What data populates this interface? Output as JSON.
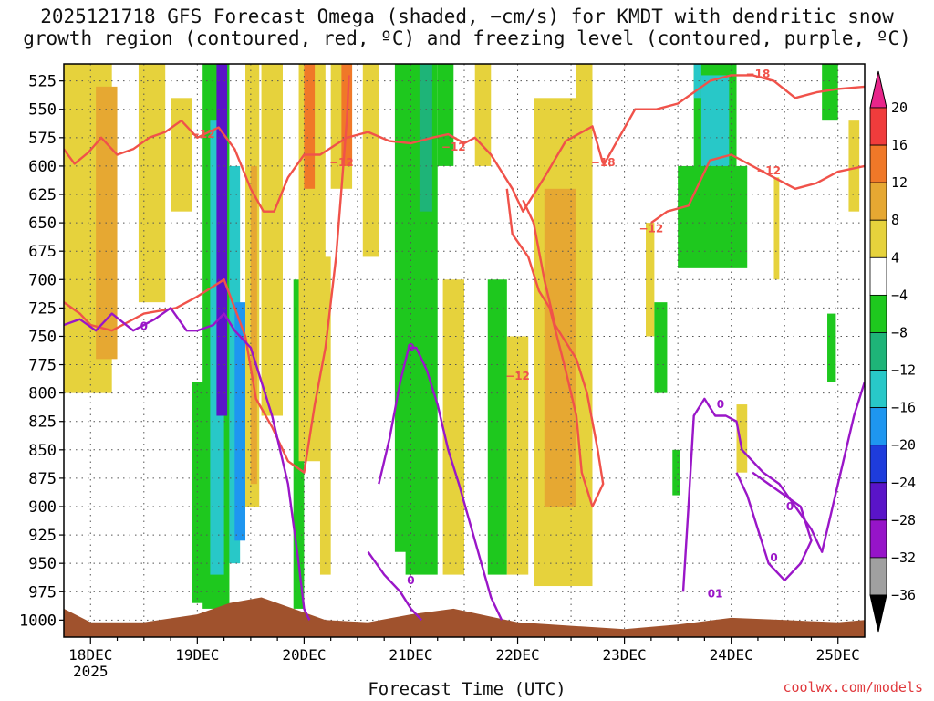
{
  "title_line1": "2025121718 GFS Forecast Omega (shaded, −cm/s) for KMDT with dendritic snow",
  "title_line2": "growth region (contoured, red, ºC) and freezing level (contoured, purple, ºC)",
  "x_title": "Forecast Time (UTC)",
  "credit": "coolwx.com/models",
  "colors": {
    "dgz_contour": "#f0524a",
    "freezing_contour": "#9a16c8",
    "terrain": "#a0522d",
    "grid": "#555555"
  },
  "chart_data": {
    "type": "heatmap",
    "y_axis": {
      "unit": "hPa",
      "ticks": [
        525,
        550,
        575,
        600,
        625,
        650,
        675,
        700,
        725,
        750,
        775,
        800,
        825,
        850,
        875,
        900,
        925,
        950,
        975,
        1000
      ],
      "range": [
        1015,
        510
      ]
    },
    "x_axis": {
      "unit": "day",
      "range": [
        17.75,
        25.25
      ],
      "tick_labels": [
        "18DEC",
        "19DEC",
        "20DEC",
        "21DEC",
        "22DEC",
        "23DEC",
        "24DEC",
        "25DEC"
      ],
      "tick_values": [
        18,
        19,
        20,
        21,
        22,
        23,
        24,
        25
      ],
      "year_label": "2025"
    },
    "colorbar": {
      "tick_labels": [
        "20",
        "16",
        "12",
        "8",
        "4",
        "−4",
        "−8",
        "−12",
        "−16",
        "−20",
        "−24",
        "−28",
        "−32",
        "−36"
      ],
      "bins": [
        {
          "min": 20,
          "max": 24,
          "color": "#e8258a"
        },
        {
          "min": 16,
          "max": 20,
          "color": "#f03c3c"
        },
        {
          "min": 12,
          "max": 16,
          "color": "#f07828"
        },
        {
          "min": 8,
          "max": 12,
          "color": "#e6a832"
        },
        {
          "min": 4,
          "max": 8,
          "color": "#e6d23c"
        },
        {
          "min": -4,
          "max": 4,
          "color": "#ffffff"
        },
        {
          "min": -8,
          "max": -4,
          "color": "#1ec81e"
        },
        {
          "min": -12,
          "max": -8,
          "color": "#1eb478"
        },
        {
          "min": -16,
          "max": -12,
          "color": "#28c8c8"
        },
        {
          "min": -20,
          "max": -16,
          "color": "#1e96f0"
        },
        {
          "min": -24,
          "max": -20,
          "color": "#1e3cdc"
        },
        {
          "min": -28,
          "max": -24,
          "color": "#5a14c8"
        },
        {
          "min": -32,
          "max": -28,
          "color": "#9614c8"
        },
        {
          "min": -36,
          "max": -32,
          "color": "#a0a0a0"
        },
        {
          "min": -40,
          "max": -36,
          "color": "#000000"
        }
      ]
    },
    "omega_regions": [
      {
        "t0": 17.75,
        "t1": 18.2,
        "p_top": 510,
        "p_bot": 800,
        "value": 6
      },
      {
        "t0": 18.05,
        "t1": 18.25,
        "p_top": 530,
        "p_bot": 770,
        "value": 10
      },
      {
        "t0": 18.45,
        "t1": 18.7,
        "p_top": 510,
        "p_bot": 720,
        "value": 6
      },
      {
        "t0": 18.75,
        "t1": 18.95,
        "p_top": 540,
        "p_bot": 640,
        "value": 6
      },
      {
        "t0": 18.95,
        "t1": 19.15,
        "p_top": 790,
        "p_bot": 985,
        "value": -6
      },
      {
        "t0": 19.05,
        "t1": 19.3,
        "p_top": 510,
        "p_bot": 990,
        "value": -6
      },
      {
        "t0": 19.12,
        "t1": 19.25,
        "p_top": 560,
        "p_bot": 960,
        "value": -14
      },
      {
        "t0": 19.18,
        "t1": 19.28,
        "p_top": 510,
        "p_bot": 820,
        "value": -26
      },
      {
        "t0": 19.3,
        "t1": 19.4,
        "p_top": 600,
        "p_bot": 950,
        "value": -14
      },
      {
        "t0": 19.35,
        "t1": 19.45,
        "p_top": 720,
        "p_bot": 930,
        "value": -18
      },
      {
        "t0": 19.45,
        "t1": 19.58,
        "p_top": 510,
        "p_bot": 900,
        "value": 6
      },
      {
        "t0": 19.5,
        "t1": 19.56,
        "p_top": 600,
        "p_bot": 880,
        "value": 10
      },
      {
        "t0": 19.6,
        "t1": 19.8,
        "p_top": 510,
        "p_bot": 820,
        "value": 6
      },
      {
        "t0": 19.9,
        "t1": 20.0,
        "p_top": 700,
        "p_bot": 990,
        "value": -6
      },
      {
        "t0": 19.95,
        "t1": 20.2,
        "p_top": 510,
        "p_bot": 860,
        "value": 6
      },
      {
        "t0": 20.0,
        "t1": 20.1,
        "p_top": 510,
        "p_bot": 620,
        "value": 14
      },
      {
        "t0": 20.15,
        "t1": 20.25,
        "p_top": 680,
        "p_bot": 960,
        "value": 6
      },
      {
        "t0": 20.25,
        "t1": 20.45,
        "p_top": 510,
        "p_bot": 620,
        "value": 6
      },
      {
        "t0": 20.35,
        "t1": 20.45,
        "p_top": 510,
        "p_bot": 600,
        "value": 14
      },
      {
        "t0": 20.55,
        "t1": 20.7,
        "p_top": 510,
        "p_bot": 680,
        "value": 6
      },
      {
        "t0": 20.85,
        "t1": 20.98,
        "p_top": 510,
        "p_bot": 940,
        "value": -6
      },
      {
        "t0": 20.95,
        "t1": 21.25,
        "p_top": 510,
        "p_bot": 960,
        "value": -6
      },
      {
        "t0": 21.08,
        "t1": 21.2,
        "p_top": 510,
        "p_bot": 640,
        "value": -10
      },
      {
        "t0": 21.25,
        "t1": 21.4,
        "p_top": 510,
        "p_bot": 600,
        "value": -6
      },
      {
        "t0": 21.3,
        "t1": 21.5,
        "p_top": 700,
        "p_bot": 960,
        "value": 6
      },
      {
        "t0": 21.6,
        "t1": 21.75,
        "p_top": 510,
        "p_bot": 600,
        "value": 6
      },
      {
        "t0": 21.72,
        "t1": 21.9,
        "p_top": 700,
        "p_bot": 960,
        "value": -6
      },
      {
        "t0": 21.9,
        "t1": 22.1,
        "p_top": 750,
        "p_bot": 960,
        "value": 6
      },
      {
        "t0": 22.15,
        "t1": 22.7,
        "p_top": 540,
        "p_bot": 970,
        "value": 6
      },
      {
        "t0": 22.25,
        "t1": 22.55,
        "p_top": 620,
        "p_bot": 900,
        "value": 10
      },
      {
        "t0": 22.55,
        "t1": 22.7,
        "p_top": 510,
        "p_bot": 620,
        "value": 6
      },
      {
        "t0": 23.2,
        "t1": 23.28,
        "p_top": 650,
        "p_bot": 750,
        "value": 6
      },
      {
        "t0": 23.28,
        "t1": 23.4,
        "p_top": 720,
        "p_bot": 800,
        "value": -6
      },
      {
        "t0": 23.5,
        "t1": 24.15,
        "p_top": 600,
        "p_bot": 690,
        "value": -6
      },
      {
        "t0": 23.65,
        "t1": 24.05,
        "p_top": 510,
        "p_bot": 640,
        "value": -6
      },
      {
        "t0": 23.72,
        "t1": 23.98,
        "p_top": 520,
        "p_bot": 600,
        "value": -14
      },
      {
        "t0": 23.65,
        "t1": 23.72,
        "p_top": 510,
        "p_bot": 540,
        "value": -14
      },
      {
        "t0": 24.05,
        "t1": 24.15,
        "p_top": 810,
        "p_bot": 870,
        "value": 6
      },
      {
        "t0": 23.45,
        "t1": 23.52,
        "p_top": 850,
        "p_bot": 890,
        "value": -6
      },
      {
        "t0": 24.4,
        "t1": 24.45,
        "p_top": 610,
        "p_bot": 700,
        "value": 6
      },
      {
        "t0": 24.85,
        "t1": 25.0,
        "p_top": 510,
        "p_bot": 560,
        "value": -6
      },
      {
        "t0": 24.9,
        "t1": 24.98,
        "p_top": 730,
        "p_bot": 790,
        "value": -6
      },
      {
        "t0": 25.1,
        "t1": 25.2,
        "p_top": 560,
        "p_bot": 640,
        "value": 6
      }
    ],
    "contours": {
      "dgz_minus12_upper": [
        [
          17.75,
          585
        ],
        [
          17.85,
          598
        ],
        [
          17.98,
          588
        ],
        [
          18.1,
          575
        ],
        [
          18.25,
          590
        ],
        [
          18.4,
          585
        ],
        [
          18.55,
          575
        ],
        [
          18.7,
          570
        ],
        [
          18.85,
          560
        ],
        [
          19.0,
          575
        ],
        [
          19.2,
          566
        ],
        [
          19.35,
          585
        ],
        [
          19.5,
          620
        ],
        [
          19.62,
          640
        ],
        [
          19.72,
          640
        ],
        [
          19.85,
          610
        ],
        [
          20.0,
          590
        ],
        [
          20.15,
          590
        ],
        [
          20.4,
          575
        ],
        [
          20.6,
          570
        ],
        [
          20.8,
          578
        ],
        [
          21.0,
          580
        ],
        [
          21.2,
          575
        ],
        [
          21.35,
          572
        ],
        [
          21.5,
          580
        ],
        [
          21.6,
          575
        ],
        [
          21.75,
          590
        ],
        [
          21.95,
          620
        ],
        [
          22.05,
          640
        ],
        [
          22.25,
          610
        ],
        [
          22.45,
          578
        ],
        [
          22.7,
          565
        ],
        [
          22.8,
          598
        ]
      ],
      "dgz_minus12_lower": [
        [
          17.75,
          720
        ],
        [
          17.9,
          730
        ],
        [
          18.0,
          740
        ],
        [
          18.2,
          745
        ],
        [
          18.5,
          730
        ],
        [
          18.8,
          725
        ],
        [
          19.0,
          715
        ],
        [
          19.25,
          700
        ],
        [
          19.45,
          750
        ],
        [
          19.55,
          805
        ],
        [
          19.7,
          830
        ],
        [
          19.85,
          860
        ],
        [
          20.0,
          870
        ],
        [
          20.1,
          810
        ],
        [
          20.2,
          760
        ],
        [
          20.25,
          720
        ],
        [
          20.3,
          680
        ],
        [
          20.35,
          620
        ],
        [
          20.4,
          560
        ],
        [
          20.42,
          520
        ]
      ],
      "dgz_minus12_east": [
        [
          21.9,
          620
        ],
        [
          21.95,
          660
        ],
        [
          22.1,
          680
        ],
        [
          22.2,
          710
        ],
        [
          22.3,
          725
        ],
        [
          22.45,
          780
        ],
        [
          22.55,
          820
        ],
        [
          22.6,
          870
        ],
        [
          22.7,
          900
        ],
        [
          22.8,
          880
        ],
        [
          22.75,
          850
        ],
        [
          22.65,
          800
        ],
        [
          22.55,
          770
        ],
        [
          22.35,
          740
        ],
        [
          22.25,
          700
        ],
        [
          22.15,
          650
        ],
        [
          22.05,
          630
        ]
      ],
      "dgz_minus18_upper": [
        [
          22.8,
          600
        ],
        [
          22.95,
          575
        ],
        [
          23.1,
          550
        ],
        [
          23.3,
          550
        ],
        [
          23.5,
          545
        ],
        [
          23.65,
          535
        ],
        [
          23.8,
          525
        ],
        [
          24.0,
          520
        ],
        [
          24.2,
          520
        ],
        [
          24.4,
          525
        ],
        [
          24.6,
          540
        ],
        [
          24.8,
          535
        ],
        [
          25.0,
          532
        ],
        [
          25.25,
          530
        ]
      ],
      "dgz_minus12_middle": [
        [
          23.25,
          650
        ],
        [
          23.4,
          640
        ],
        [
          23.6,
          635
        ],
        [
          23.8,
          595
        ],
        [
          24.0,
          590
        ],
        [
          24.2,
          600
        ],
        [
          24.4,
          610
        ],
        [
          24.6,
          620
        ],
        [
          24.8,
          615
        ],
        [
          25.0,
          605
        ],
        [
          25.25,
          600
        ]
      ],
      "freezing_0_west": [
        [
          17.75,
          740
        ],
        [
          17.9,
          735
        ],
        [
          18.05,
          745
        ],
        [
          18.2,
          730
        ],
        [
          18.4,
          745
        ],
        [
          18.6,
          735
        ],
        [
          18.75,
          725
        ],
        [
          18.9,
          745
        ],
        [
          19.0,
          745
        ],
        [
          19.15,
          740
        ],
        [
          19.25,
          730
        ],
        [
          19.35,
          745
        ],
        [
          19.5,
          760
        ],
        [
          19.7,
          820
        ],
        [
          19.85,
          880
        ],
        [
          19.95,
          950
        ],
        [
          20.0,
          990
        ],
        [
          20.05,
          1000
        ]
      ],
      "freezing_0_mid": [
        [
          20.7,
          880
        ],
        [
          20.8,
          840
        ],
        [
          20.9,
          790
        ],
        [
          20.98,
          760
        ],
        [
          21.05,
          760
        ],
        [
          21.15,
          780
        ],
        [
          21.25,
          810
        ],
        [
          21.35,
          850
        ],
        [
          21.45,
          880
        ],
        [
          21.6,
          930
        ],
        [
          21.75,
          980
        ],
        [
          21.85,
          1000
        ]
      ],
      "freezing_0_lower": [
        [
          20.6,
          940
        ],
        [
          20.75,
          960
        ],
        [
          20.9,
          975
        ],
        [
          21.0,
          990
        ],
        [
          21.1,
          1000
        ]
      ],
      "freezing_0_east": [
        [
          23.55,
          975
        ],
        [
          23.6,
          900
        ],
        [
          23.65,
          820
        ],
        [
          23.75,
          805
        ],
        [
          23.85,
          820
        ],
        [
          23.95,
          820
        ],
        [
          24.05,
          825
        ],
        [
          24.1,
          850
        ],
        [
          24.2,
          860
        ],
        [
          24.3,
          870
        ],
        [
          24.45,
          880
        ],
        [
          24.6,
          900
        ],
        [
          24.75,
          920
        ],
        [
          24.85,
          940
        ],
        [
          24.95,
          900
        ],
        [
          25.05,
          860
        ],
        [
          25.15,
          820
        ],
        [
          25.25,
          790
        ]
      ],
      "freezing_0_east_loop": [
        [
          24.05,
          870
        ],
        [
          24.15,
          890
        ],
        [
          24.25,
          920
        ],
        [
          24.35,
          950
        ],
        [
          24.5,
          965
        ],
        [
          24.65,
          950
        ],
        [
          24.75,
          930
        ],
        [
          24.65,
          900
        ],
        [
          24.5,
          890
        ],
        [
          24.35,
          880
        ],
        [
          24.2,
          870
        ]
      ]
    },
    "contour_labels": [
      {
        "text": "−12",
        "t": 19.05,
        "p": 572,
        "color": "red"
      },
      {
        "text": "−12",
        "t": 20.35,
        "p": 597,
        "color": "red"
      },
      {
        "text": "−12",
        "t": 21.4,
        "p": 583,
        "color": "red"
      },
      {
        "text": "−18",
        "t": 22.8,
        "p": 597,
        "color": "red"
      },
      {
        "text": "−12",
        "t": 23.25,
        "p": 655,
        "color": "red"
      },
      {
        "text": "−12",
        "t": 22.0,
        "p": 785,
        "color": "red"
      },
      {
        "text": "−18",
        "t": 24.25,
        "p": 519,
        "color": "red"
      },
      {
        "text": "−12",
        "t": 24.35,
        "p": 604,
        "color": "red"
      },
      {
        "text": "0",
        "t": 18.5,
        "p": 741,
        "color": "purple"
      },
      {
        "text": "0",
        "t": 21.0,
        "p": 760,
        "color": "purple"
      },
      {
        "text": "0",
        "t": 21.0,
        "p": 965,
        "color": "purple"
      },
      {
        "text": "0",
        "t": 23.9,
        "p": 810,
        "color": "purple"
      },
      {
        "text": "0",
        "t": 24.55,
        "p": 900,
        "color": "purple"
      },
      {
        "text": "0",
        "t": 24.4,
        "p": 945,
        "color": "purple"
      },
      {
        "text": "01",
        "t": 23.85,
        "p": 977,
        "color": "purple"
      }
    ],
    "terrain": [
      [
        17.75,
        990
      ],
      [
        18.0,
        1002
      ],
      [
        18.5,
        1002
      ],
      [
        19.0,
        995
      ],
      [
        19.3,
        985
      ],
      [
        19.6,
        980
      ],
      [
        19.9,
        990
      ],
      [
        20.2,
        1000
      ],
      [
        20.6,
        1002
      ],
      [
        21.0,
        995
      ],
      [
        21.4,
        990
      ],
      [
        21.8,
        998
      ],
      [
        22.0,
        1002
      ],
      [
        22.5,
        1005
      ],
      [
        23.0,
        1008
      ],
      [
        23.5,
        1004
      ],
      [
        24.0,
        998
      ],
      [
        24.5,
        1000
      ],
      [
        25.0,
        1002
      ],
      [
        25.25,
        1000
      ]
    ]
  }
}
